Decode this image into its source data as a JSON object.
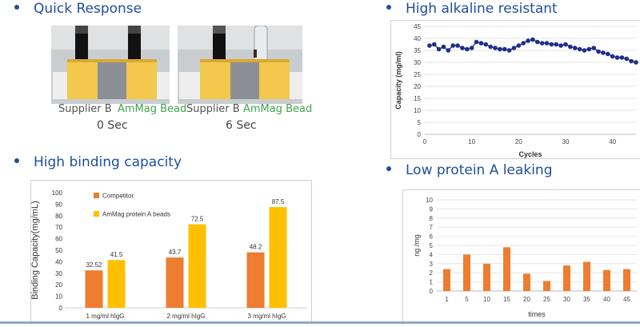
{
  "sections": {
    "quick": {
      "title": "Quick Response"
    },
    "alkaline": {
      "title": "High alkaline resistant"
    },
    "binding": {
      "title": "High binding capacity"
    },
    "leaking": {
      "title": "Low protein A leaking"
    }
  },
  "photos": [
    {
      "left_label": "Supplier B",
      "right_label": "AmMag Bead",
      "time": "0 Sec"
    },
    {
      "left_label": "Supplier B",
      "right_label": "AmMag Bead",
      "time": "6 Sec"
    }
  ],
  "colors": {
    "heading": "#1f4e9c",
    "green": "#3fa34d",
    "orange": "#ed7d31",
    "gold": "#ffc000",
    "navy": "#1f2d8a"
  },
  "chart_data": [
    {
      "type": "line",
      "title": "",
      "xlabel": "Cycles",
      "ylabel": "Capacity (mg/ml)",
      "xlim": [
        0,
        45
      ],
      "ylim": [
        0,
        45
      ],
      "xticks": [
        0,
        10,
        20,
        30,
        40
      ],
      "yticks": [
        0,
        5,
        10,
        15,
        20,
        25,
        30,
        35,
        40,
        45
      ],
      "series": [
        {
          "x": [
            1,
            2,
            3,
            4,
            5,
            6,
            7,
            8,
            9,
            10,
            11,
            12,
            13,
            14,
            15,
            16,
            17,
            18,
            19,
            20,
            21,
            22,
            23,
            24,
            25,
            26,
            27,
            28,
            29,
            30,
            31,
            32,
            33,
            34,
            35,
            36,
            37,
            38,
            39,
            40,
            41,
            42,
            43,
            44,
            45
          ],
          "values": [
            37,
            37.5,
            35.5,
            36.5,
            35,
            37,
            37,
            36,
            35.5,
            36,
            38.5,
            38,
            37.5,
            36.5,
            36,
            35.5,
            35.5,
            35,
            36,
            37,
            38,
            39,
            39.5,
            38.5,
            38,
            38,
            37.5,
            37.5,
            37,
            37.5,
            36.5,
            36,
            35.5,
            35,
            35.5,
            36,
            34.5,
            34,
            33.5,
            32.5,
            32,
            32,
            31.5,
            30.5,
            30
          ]
        }
      ]
    },
    {
      "type": "bar",
      "title": "",
      "xlabel": "",
      "ylabel": "Binding Capacity(mg/mL)",
      "ylim": [
        0,
        100
      ],
      "yticks": [
        0,
        10,
        20,
        30,
        40,
        50,
        60,
        70,
        80,
        90,
        100
      ],
      "legend_position": "top-left",
      "categories": [
        "1 mg/ml hIgG",
        "2 mg/ml hIgG",
        "3 mg/ml hIgG"
      ],
      "series": [
        {
          "name": "Competitor",
          "values": [
            32.52,
            43.7,
            48.2
          ],
          "labels": [
            "32.52",
            "43.7",
            "48.2"
          ]
        },
        {
          "name": "AmMag protein A beads",
          "values": [
            41.5,
            72.5,
            87.5
          ],
          "labels": [
            "41.5",
            "72.5",
            "87.5"
          ]
        }
      ]
    },
    {
      "type": "bar",
      "title": "",
      "xlabel": "times",
      "ylabel": "ng /mg",
      "ylim": [
        0,
        10
      ],
      "yticks": [
        0,
        1,
        2,
        3,
        4,
        5,
        6,
        7,
        8,
        9,
        10
      ],
      "categories": [
        "1",
        "5",
        "10",
        "15",
        "20",
        "25",
        "30",
        "35",
        "40",
        "45"
      ],
      "values": [
        2.4,
        4.0,
        3.0,
        4.8,
        1.9,
        1.1,
        2.8,
        3.2,
        2.3,
        2.4
      ]
    }
  ]
}
